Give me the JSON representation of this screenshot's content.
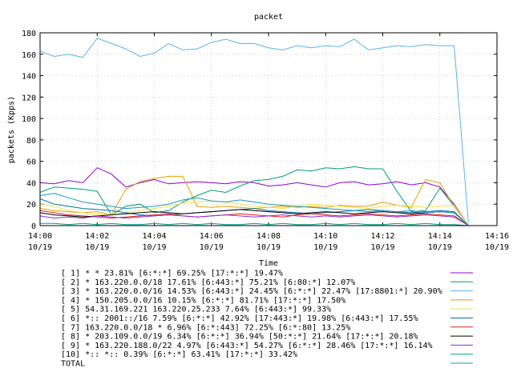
{
  "chart_data": {
    "type": "line",
    "title": "packet",
    "xlabel": "Time",
    "ylabel": "packets (Kpps)",
    "ylim": [
      0,
      180
    ],
    "yticks": [
      0,
      20,
      40,
      60,
      80,
      100,
      120,
      140,
      160,
      180
    ],
    "xlim_minutes": [
      0,
      16
    ],
    "xticks": [
      {
        "m": 0,
        "label": "14:00",
        "date": "10/19"
      },
      {
        "m": 2,
        "label": "14:02",
        "date": "10/19"
      },
      {
        "m": 4,
        "label": "14:04",
        "date": "10/19"
      },
      {
        "m": 6,
        "label": "14:06",
        "date": "10/19"
      },
      {
        "m": 8,
        "label": "14:08",
        "date": "10/19"
      },
      {
        "m": 10,
        "label": "14:10",
        "date": "10/19"
      },
      {
        "m": 12,
        "label": "14:12",
        "date": "10/19"
      },
      {
        "m": 14,
        "label": "14:14",
        "date": "10/19"
      },
      {
        "m": 16,
        "label": "14:16",
        "date": "10/19"
      }
    ],
    "x": [
      0,
      0.5,
      1,
      1.5,
      2,
      2.5,
      3,
      3.5,
      4,
      4.5,
      5,
      5.5,
      6,
      6.5,
      7,
      7.5,
      8,
      8.5,
      9,
      9.5,
      10,
      10.5,
      11,
      11.5,
      12,
      12.5,
      13,
      13.5,
      14,
      14.5,
      15
    ],
    "grid": true,
    "legend_position": "bottom",
    "series": [
      {
        "name": "[ 1] * * 23.81%  [6:*:*] 69.25% [17:*:*] 19.47%",
        "color": "#9400d3",
        "values": [
          40,
          39,
          42,
          40,
          54,
          48,
          36,
          40,
          43,
          39,
          40,
          41,
          40,
          39,
          41,
          40,
          37,
          38,
          40,
          38,
          36,
          40,
          41,
          38,
          39,
          41,
          38,
          40,
          36,
          20,
          0
        ]
      },
      {
        "name": "[ 2] * 163.220.0.0/18 17.61%  [6:443:*] 75.21% [6:80:*] 12.07%",
        "color": "#009e73",
        "values": [
          31,
          36,
          35,
          34,
          32,
          10,
          18,
          20,
          12,
          14,
          22,
          28,
          33,
          31,
          37,
          42,
          43,
          46,
          52,
          51,
          54,
          53,
          55,
          53,
          53,
          32,
          13,
          14,
          35,
          18,
          0
        ]
      },
      {
        "name": "[ 3] * 163.220.0.0/16 14.53%  [6:443:*] 24.45% [6:*:*] 22.47% [17:8801:*] 20.90%",
        "color": "#56b4e9",
        "values": [
          163,
          158,
          160,
          157,
          175,
          170,
          165,
          158,
          161,
          170,
          164,
          165,
          171,
          174,
          170,
          170,
          166,
          164,
          168,
          166,
          168,
          167,
          174,
          164,
          166,
          168,
          167,
          169,
          168,
          168,
          2
        ]
      },
      {
        "name": "[ 4] * 150.205.0.0/16 10.15%  [6:*:*] 81.71% [17:*:*] 17.50%",
        "color": "#e69f00",
        "values": [
          16,
          14,
          13,
          12,
          13,
          10,
          34,
          41,
          44,
          46,
          46,
          18,
          17,
          18,
          17,
          16,
          17,
          18,
          17,
          18,
          17,
          19,
          18,
          18,
          22,
          19,
          17,
          43,
          40,
          18,
          0
        ]
      },
      {
        "name": "[ 5] 54.31.169.221 163.220.25.233 7.64%  [6:443:*] 99.33%",
        "color": "#f0e442",
        "values": [
          20,
          18,
          14,
          12,
          10,
          11,
          12,
          14,
          16,
          18,
          21,
          22,
          23,
          22,
          20,
          18,
          17,
          16,
          18,
          20,
          19,
          18,
          17,
          16,
          18,
          19,
          18,
          17,
          18,
          19,
          0
        ]
      },
      {
        "name": "[ 6] *:: 2001::/16 7.59%  [6:*:*] 42.92% [17:443:*] 19.98% [6:443:*] 17.55%",
        "color": "#0072b2",
        "values": [
          25,
          20,
          18,
          16,
          15,
          14,
          12,
          10,
          9,
          10,
          11,
          12,
          13,
          14,
          15,
          16,
          14,
          13,
          12,
          11,
          12,
          13,
          14,
          15,
          14,
          13,
          12,
          13,
          14,
          13,
          0
        ]
      },
      {
        "name": "[ 7] 163.220.0.0/18 * 6.96%  [6:*:443] 72.25% [6:*:80] 13.25%",
        "color": "#e51e10",
        "values": [
          14,
          12,
          10,
          9,
          8,
          7,
          8,
          9,
          10,
          11,
          9,
          8,
          9,
          10,
          11,
          10,
          9,
          8,
          10,
          11,
          10,
          9,
          10,
          11,
          10,
          9,
          10,
          11,
          10,
          9,
          0
        ]
      },
      {
        "name": "[ 8] * 203.109.0.0/19 6.34%  [6:*:*] 36.94% [50:*:*] 21.64% [17:*:*] 20.18%",
        "color": "#000000",
        "values": [
          12,
          10,
          9,
          8,
          9,
          10,
          11,
          12,
          13,
          12,
          11,
          12,
          13,
          14,
          15,
          14,
          13,
          12,
          11,
          12,
          13,
          12,
          11,
          12,
          13,
          12,
          11,
          12,
          13,
          12,
          0
        ]
      },
      {
        "name": "[ 9] * 163.220.188.0/22 4.97%  [6:443:*] 54.27% [6:*:*] 28.46% [17:*:*] 16.14%",
        "color": "#8a2be2",
        "values": [
          9,
          7,
          8,
          7,
          9,
          8,
          7,
          8,
          9,
          10,
          9,
          8,
          9,
          10,
          9,
          8,
          9,
          10,
          9,
          8,
          9,
          8,
          9,
          10,
          9,
          8,
          9,
          10,
          9,
          8,
          0
        ]
      },
      {
        "name": "[10] *:: *:: 0.39%  [6:*:*] 63.41% [17:*:*] 33.42%",
        "color": "#00a08a",
        "values": [
          2,
          2,
          1,
          2,
          1,
          2,
          1,
          1,
          2,
          1,
          2,
          1,
          2,
          1,
          1,
          2,
          1,
          2,
          1,
          1,
          2,
          1,
          2,
          1,
          1,
          2,
          1,
          2,
          1,
          1,
          0
        ]
      },
      {
        "name": "TOTAL",
        "color": "#1a9aba",
        "values": [
          28,
          30,
          26,
          22,
          20,
          18,
          16,
          17,
          18,
          20,
          24,
          26,
          23,
          22,
          24,
          22,
          20,
          19,
          18,
          17,
          16,
          15,
          14,
          13,
          14,
          13,
          14,
          12,
          13,
          12,
          0
        ]
      }
    ]
  }
}
